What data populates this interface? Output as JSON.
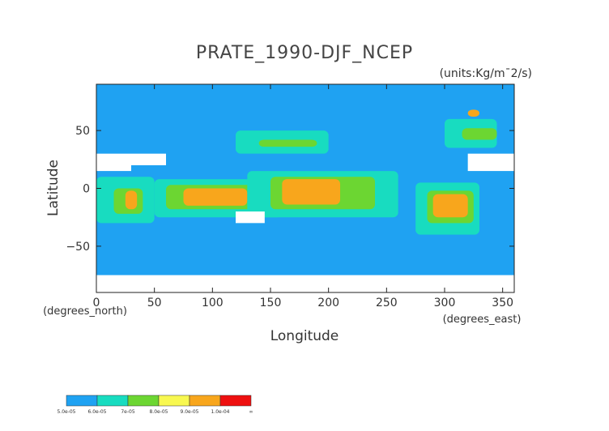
{
  "chart_data": {
    "type": "heatmap",
    "title": "PRATE_1990-DJF_NCEP",
    "units": "(units:Kg/m¯2/s)",
    "xlabel": "Longitude",
    "ylabel": "Latitude",
    "xunits": "(degrees_east)",
    "yunits": "(degrees_north)",
    "xlim": [
      0,
      360
    ],
    "ylim": [
      -90,
      90
    ],
    "xticks": [
      0,
      50,
      100,
      150,
      200,
      250,
      300,
      350
    ],
    "yticks": [
      -50,
      0,
      50
    ],
    "colorbar": {
      "labels": [
        "5.0e-05",
        "6.0e-05",
        "7e-05",
        "8.0e-05",
        "9.0e-05",
        "1.0e-04",
        "∞"
      ],
      "colors": [
        "#1fa2f2",
        "#18dcc0",
        "#6cd632",
        "#f8f850",
        "#f8a61c",
        "#ee1010"
      ],
      "missing_color": "#ffffff"
    },
    "regions": [
      {
        "level": 1,
        "x": [
          120,
          200
        ],
        "y": [
          50,
          30
        ]
      },
      {
        "level": 2,
        "x": [
          140,
          190
        ],
        "y": [
          42,
          36
        ]
      },
      {
        "level": 1,
        "x": [
          200,
          250
        ],
        "y": [
          12,
          6
        ]
      },
      {
        "level": 1,
        "x": [
          0,
          50
        ],
        "y": [
          10,
          -30
        ]
      },
      {
        "level": 2,
        "x": [
          15,
          40
        ],
        "y": [
          0,
          -22
        ]
      },
      {
        "level": 4,
        "x": [
          25,
          35
        ],
        "y": [
          -2,
          -18
        ]
      },
      {
        "level": 1,
        "x": [
          50,
          160
        ],
        "y": [
          8,
          -25
        ]
      },
      {
        "level": 2,
        "x": [
          60,
          150
        ],
        "y": [
          3,
          -18
        ]
      },
      {
        "level": 4,
        "x": [
          75,
          130
        ],
        "y": [
          0,
          -15
        ]
      },
      {
        "level": 1,
        "x": [
          130,
          260
        ],
        "y": [
          15,
          -25
        ]
      },
      {
        "level": 2,
        "x": [
          150,
          240
        ],
        "y": [
          10,
          -18
        ]
      },
      {
        "level": 4,
        "x": [
          160,
          210
        ],
        "y": [
          8,
          -14
        ]
      },
      {
        "level": 1,
        "x": [
          275,
          330
        ],
        "y": [
          5,
          -40
        ]
      },
      {
        "level": 2,
        "x": [
          285,
          325
        ],
        "y": [
          -2,
          -30
        ]
      },
      {
        "level": 4,
        "x": [
          290,
          320
        ],
        "y": [
          -5,
          -25
        ]
      },
      {
        "level": 1,
        "x": [
          300,
          345
        ],
        "y": [
          60,
          35
        ]
      },
      {
        "level": 2,
        "x": [
          315,
          345
        ],
        "y": [
          52,
          42
        ]
      },
      {
        "level": 4,
        "x": [
          320,
          330
        ],
        "y": [
          68,
          62
        ]
      }
    ],
    "missing_regions": [
      {
        "x": [
          0,
          30
        ],
        "y": [
          30,
          15
        ]
      },
      {
        "x": [
          30,
          60
        ],
        "y": [
          30,
          20
        ]
      },
      {
        "x": [
          120,
          145
        ],
        "y": [
          -20,
          -30
        ]
      },
      {
        "x": [
          0,
          360
        ],
        "y": [
          -75,
          -90
        ]
      },
      {
        "x": [
          320,
          360
        ],
        "y": [
          30,
          15
        ]
      }
    ]
  }
}
